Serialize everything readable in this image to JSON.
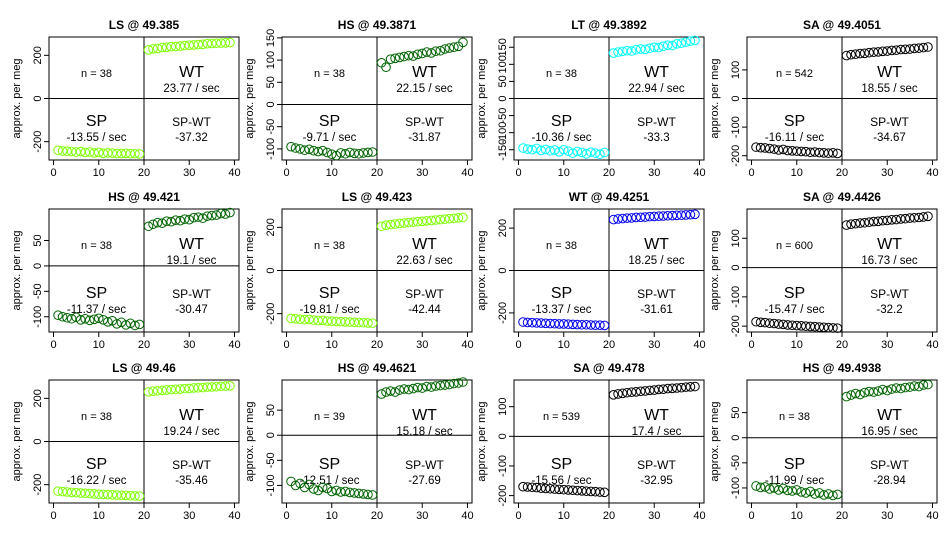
{
  "chart_data": [
    {
      "type": "scatter",
      "title": "LS @ 49.385",
      "ylabel": "approx. per meg",
      "xticks": [
        0,
        10,
        20,
        30,
        40
      ],
      "yticks": [
        -200,
        0,
        200
      ],
      "ylim": [
        -285,
        285
      ],
      "xlim": [
        -1,
        41
      ],
      "color": "#7fff00",
      "n_label": "n = 38",
      "wt_label": "WT",
      "wt_rate": "23.77 / sec",
      "sp_label": "SP",
      "sp_rate": "-13.55 / sec",
      "diff_label": "SP-WT",
      "diff_value": "-37.32",
      "sp_points": [
        -240,
        -243,
        -244,
        -246,
        -248,
        -246,
        -250,
        -248,
        -252,
        -250,
        -254,
        -252,
        -253,
        -255,
        -255,
        -254,
        -256,
        -256,
        -257
      ],
      "wt_points": [
        225,
        230,
        232,
        236,
        237,
        240,
        241,
        243,
        245,
        247,
        248,
        250,
        251,
        254,
        255,
        256,
        257,
        258,
        259
      ]
    },
    {
      "type": "scatter",
      "title": "HS @ 49.3871",
      "ylabel": "approx. per meg",
      "xticks": [
        0,
        10,
        20,
        30,
        40
      ],
      "yticks": [
        -100,
        -50,
        0,
        50,
        100,
        150
      ],
      "ylim": [
        -125,
        152
      ],
      "xlim": [
        -1,
        41
      ],
      "color": "#006400",
      "n_label": "n = 38",
      "wt_label": "WT",
      "wt_rate": "22.15 / sec",
      "sp_label": "SP",
      "sp_rate": "-9.71 / sec",
      "diff_label": "SP-WT",
      "diff_value": "-31.87",
      "sp_points": [
        -95,
        -98,
        -100,
        -103,
        -101,
        -104,
        -106,
        -104,
        -108,
        -112,
        -115,
        -109,
        -111,
        -108,
        -110,
        -111,
        -109,
        -108,
        -107
      ],
      "wt_points": [
        94,
        84,
        102,
        104,
        106,
        108,
        110,
        109,
        113,
        115,
        118,
        116,
        120,
        121,
        125,
        127,
        129,
        131,
        140
      ]
    },
    {
      "type": "scatter",
      "title": "LT @ 49.3892",
      "ylabel": "approx. per meg",
      "xticks": [
        0,
        10,
        20,
        30,
        40
      ],
      "yticks": [
        -150,
        -100,
        -50,
        0,
        50,
        100,
        150
      ],
      "ylim": [
        -180,
        180
      ],
      "xlim": [
        -1,
        41
      ],
      "color": "#00ffff",
      "n_label": "n = 38",
      "wt_label": "WT",
      "wt_rate": "22.94 / sec",
      "sp_label": "SP",
      "sp_rate": "-10.36 / sec",
      "diff_label": "SP-WT",
      "diff_value": "-33.3",
      "sp_points": [
        -145,
        -148,
        -150,
        -146,
        -152,
        -149,
        -153,
        -151,
        -156,
        -150,
        -154,
        -160,
        -155,
        -158,
        -162,
        -157,
        -160,
        -163,
        -158
      ],
      "wt_points": [
        133,
        136,
        138,
        140,
        139,
        143,
        145,
        144,
        147,
        150,
        149,
        153,
        156,
        155,
        160,
        162,
        165,
        168,
        170
      ]
    },
    {
      "type": "scatter",
      "title": "SA @ 49.4051",
      "ylabel": "approx. per meg",
      "xticks": [
        0,
        10,
        20,
        30,
        40
      ],
      "yticks": [
        -200,
        -100,
        0,
        100
      ],
      "ylim": [
        -215,
        215
      ],
      "xlim": [
        -1,
        41
      ],
      "color": "#000000",
      "n_label": "n = 542",
      "wt_label": "WT",
      "wt_rate": "18.55 / sec",
      "sp_label": "SP",
      "sp_rate": "-16.11 / sec",
      "diff_label": "SP-WT",
      "diff_value": "-34.67",
      "sp_points": [
        -170,
        -172,
        -173,
        -175,
        -177,
        -180,
        -178,
        -182,
        -183,
        -184,
        -185,
        -186,
        -188,
        -187,
        -189,
        -190,
        -191,
        -190,
        -192
      ],
      "wt_points": [
        150,
        153,
        155,
        157,
        158,
        160,
        162,
        163,
        165,
        166,
        168,
        169,
        171,
        172,
        173,
        175,
        176,
        178,
        180
      ]
    },
    {
      "type": "scatter",
      "title": "HS @ 49.421",
      "ylabel": "approx. per meg",
      "xticks": [
        0,
        10,
        20,
        30,
        40
      ],
      "yticks": [
        -100,
        -50,
        0,
        50
      ],
      "ylim": [
        -130,
        112
      ],
      "xlim": [
        -1,
        41
      ],
      "color": "#006400",
      "n_label": "n = 38",
      "wt_label": "WT",
      "wt_rate": "19.1 / sec",
      "sp_label": "SP",
      "sp_rate": "-11.37 / sec",
      "diff_label": "SP-WT",
      "diff_value": "-30.47",
      "sp_points": [
        -97,
        -100,
        -102,
        -104,
        -101,
        -106,
        -104,
        -107,
        -105,
        -103,
        -106,
        -110,
        -108,
        -114,
        -111,
        -116,
        -113,
        -117,
        -115
      ],
      "wt_points": [
        78,
        82,
        85,
        84,
        88,
        87,
        90,
        89,
        92,
        91,
        95,
        96,
        94,
        98,
        99,
        100,
        103,
        102,
        105
      ]
    },
    {
      "type": "scatter",
      "title": "LS @ 49.423",
      "ylabel": "approx. per meg",
      "xticks": [
        0,
        10,
        20,
        30,
        40
      ],
      "yticks": [
        -200,
        0,
        200
      ],
      "ylim": [
        -285,
        285
      ],
      "xlim": [
        -1,
        41
      ],
      "color": "#7fff00",
      "n_label": "n = 38",
      "wt_label": "WT",
      "wt_rate": "22.63 / sec",
      "sp_label": "SP",
      "sp_rate": "-19.81 / sec",
      "diff_label": "SP-WT",
      "diff_value": "-42.44",
      "sp_points": [
        -222,
        -224,
        -226,
        -228,
        -227,
        -230,
        -232,
        -231,
        -234,
        -235,
        -236,
        -237,
        -238,
        -239,
        -240,
        -241,
        -242,
        -243,
        -244
      ],
      "wt_points": [
        205,
        210,
        213,
        215,
        218,
        220,
        222,
        224,
        226,
        228,
        230,
        232,
        234,
        236,
        238,
        240,
        242,
        244,
        246
      ]
    },
    {
      "type": "scatter",
      "title": "WT @ 49.4251",
      "ylabel": "approx. per meg",
      "xticks": [
        0,
        10,
        20,
        30,
        40
      ],
      "yticks": [
        -200,
        0,
        200
      ],
      "ylim": [
        -290,
        290
      ],
      "xlim": [
        -1,
        41
      ],
      "color": "#0000ee",
      "n_label": "n = 38",
      "wt_label": "WT",
      "wt_rate": "18.25 / sec",
      "sp_label": "SP",
      "sp_rate": "-13.37 / sec",
      "diff_label": "SP-WT",
      "diff_value": "-31.61",
      "sp_points": [
        -243,
        -245,
        -246,
        -247,
        -248,
        -249,
        -250,
        -251,
        -252,
        -252,
        -253,
        -254,
        -255,
        -256,
        -256,
        -257,
        -258,
        -258,
        -259
      ],
      "wt_points": [
        240,
        243,
        245,
        247,
        248,
        250,
        251,
        252,
        254,
        255,
        256,
        257,
        258,
        259,
        260,
        261,
        262,
        263,
        265
      ]
    },
    {
      "type": "scatter",
      "title": "SA @ 49.4426",
      "ylabel": "approx. per meg",
      "xticks": [
        0,
        10,
        20,
        30,
        40
      ],
      "yticks": [
        -200,
        -100,
        0,
        100
      ],
      "ylim": [
        -220,
        200
      ],
      "xlim": [
        -1,
        41
      ],
      "color": "#000000",
      "n_label": "n = 600",
      "wt_label": "WT",
      "wt_rate": "16.73 / sec",
      "sp_label": "SP",
      "sp_rate": "-15.47 / sec",
      "diff_label": "SP-WT",
      "diff_value": "-32.2",
      "sp_points": [
        -185,
        -187,
        -188,
        -190,
        -191,
        -193,
        -194,
        -196,
        -197,
        -198,
        -199,
        -200,
        -201,
        -202,
        -203,
        -204,
        -205,
        -206,
        -207
      ],
      "wt_points": [
        145,
        148,
        150,
        152,
        153,
        155,
        157,
        158,
        160,
        161,
        163,
        164,
        166,
        167,
        169,
        170,
        171,
        173,
        175
      ]
    },
    {
      "type": "scatter",
      "title": "LS @ 49.46",
      "ylabel": "approx. per meg",
      "xticks": [
        0,
        10,
        20,
        30,
        40
      ],
      "yticks": [
        -200,
        0,
        200
      ],
      "ylim": [
        -285,
        285
      ],
      "xlim": [
        -1,
        41
      ],
      "color": "#7fff00",
      "n_label": "n = 38",
      "wt_label": "WT",
      "wt_rate": "19.24 / sec",
      "sp_label": "SP",
      "sp_rate": "-16.22 / sec",
      "diff_label": "SP-WT",
      "diff_value": "-35.46",
      "sp_points": [
        -230,
        -232,
        -234,
        -236,
        -237,
        -239,
        -240,
        -241,
        -243,
        -244,
        -245,
        -246,
        -247,
        -248,
        -249,
        -250,
        -251,
        -252,
        -253
      ],
      "wt_points": [
        230,
        233,
        235,
        237,
        239,
        240,
        242,
        243,
        245,
        246,
        248,
        249,
        250,
        252,
        253,
        254,
        256,
        257,
        258
      ]
    },
    {
      "type": "scatter",
      "title": "HS @ 49.4621",
      "ylabel": "approx. per meg",
      "xticks": [
        0,
        10,
        20,
        30,
        40
      ],
      "yticks": [
        -100,
        -50,
        0,
        50
      ],
      "ylim": [
        -135,
        110
      ],
      "xlim": [
        -1,
        41
      ],
      "color": "#006400",
      "n_label": "n = 39",
      "wt_label": "WT",
      "wt_rate": "15.18 / sec",
      "sp_label": "SP",
      "sp_rate": "-12.51 / sec",
      "diff_label": "SP-WT",
      "diff_value": "-27.69",
      "sp_points": [
        -92,
        -100,
        -96,
        -104,
        -98,
        -107,
        -110,
        -104,
        -106,
        -112,
        -110,
        -113,
        -112,
        -114,
        -115,
        -116,
        -117,
        -118,
        -119
      ],
      "wt_points": [
        82,
        86,
        88,
        86,
        90,
        92,
        91,
        93,
        95,
        94,
        97,
        96,
        98,
        99,
        100,
        101,
        103,
        104,
        106
      ]
    },
    {
      "type": "scatter",
      "title": "SA @ 49.478",
      "ylabel": "approx. per meg",
      "xticks": [
        0,
        10,
        20,
        30,
        40
      ],
      "yticks": [
        -200,
        -100,
        0,
        100
      ],
      "ylim": [
        -225,
        190
      ],
      "xlim": [
        -1,
        41
      ],
      "color": "#000000",
      "n_label": "n = 539",
      "wt_label": "WT",
      "wt_rate": "17.4 / sec",
      "sp_label": "SP",
      "sp_rate": "-15.56 / sec",
      "diff_label": "SP-WT",
      "diff_value": "-32.95",
      "sp_points": [
        -170,
        -171,
        -172,
        -173,
        -175,
        -176,
        -177,
        -178,
        -179,
        -180,
        -181,
        -182,
        -183,
        -184,
        -185,
        -186,
        -187,
        -188,
        -189
      ],
      "wt_points": [
        140,
        143,
        145,
        147,
        149,
        150,
        152,
        153,
        155,
        156,
        158,
        159,
        161,
        162,
        163,
        164,
        166,
        167,
        168
      ]
    },
    {
      "type": "scatter",
      "title": "HS @ 49.4938",
      "ylabel": "approx. per meg",
      "xticks": [
        0,
        10,
        20,
        30,
        40
      ],
      "yticks": [
        -100,
        -50,
        0,
        50
      ],
      "ylim": [
        -130,
        115
      ],
      "xlim": [
        -1,
        41
      ],
      "color": "#006400",
      "n_label": "n = 38",
      "wt_label": "WT",
      "wt_rate": "16.95 / sec",
      "sp_label": "SP",
      "sp_rate": "-11.99 / sec",
      "diff_label": "SP-WT",
      "diff_value": "-28.94",
      "sp_points": [
        -96,
        -99,
        -98,
        -102,
        -100,
        -104,
        -101,
        -105,
        -106,
        -104,
        -108,
        -110,
        -107,
        -112,
        -110,
        -114,
        -112,
        -115,
        -113
      ],
      "wt_points": [
        82,
        85,
        88,
        86,
        90,
        92,
        91,
        93,
        96,
        94,
        97,
        99,
        98,
        100,
        101,
        103,
        102,
        105,
        106
      ]
    }
  ]
}
